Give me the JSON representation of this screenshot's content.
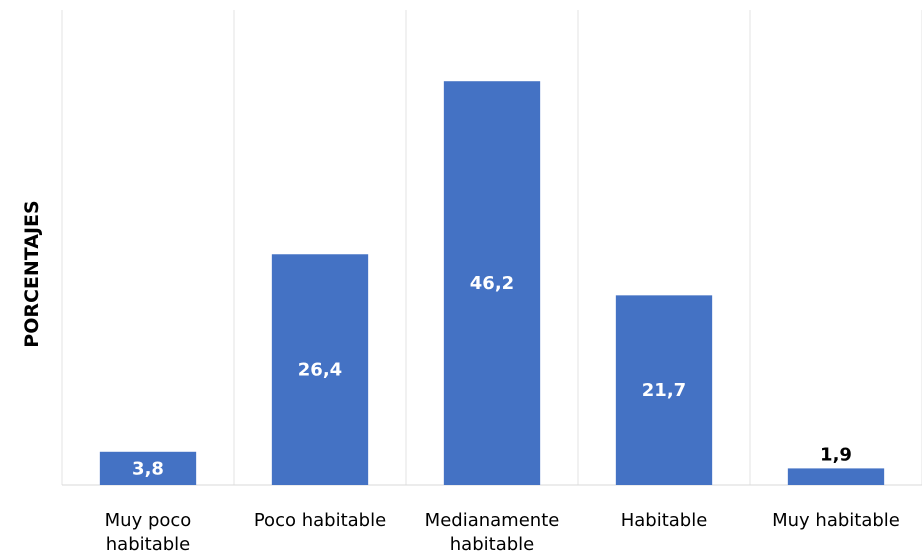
{
  "chart_data": {
    "type": "bar",
    "ylabel": "PORCENTAJES",
    "categories": [
      [
        "Muy poco",
        "habitable"
      ],
      [
        "Poco habitable"
      ],
      [
        "Medianamente",
        "habitable"
      ],
      [
        "Habitable"
      ],
      [
        "Muy habitable"
      ]
    ],
    "values": [
      3.8,
      26.4,
      46.2,
      21.7,
      1.9
    ],
    "value_labels": [
      "3,8",
      "26,4",
      "46,2",
      "21,7",
      "1,9"
    ],
    "ylim": [
      0,
      50
    ],
    "grid": "vertical",
    "bar_color": "#4472C4",
    "label_color_inside": "#FFFFFF",
    "label_color_outside": "#000000"
  }
}
